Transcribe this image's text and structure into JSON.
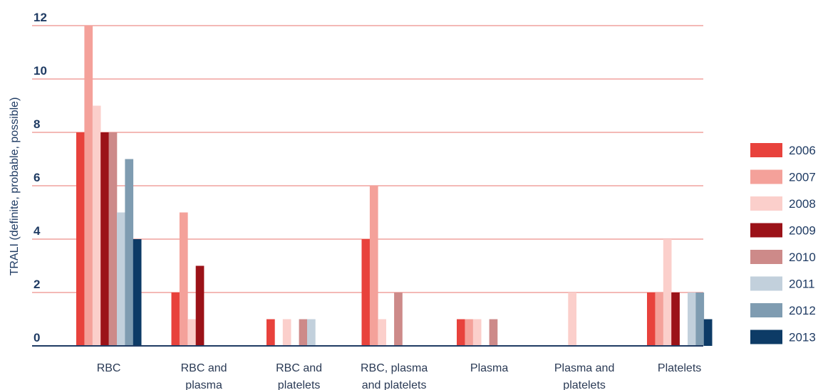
{
  "chart_data": {
    "type": "bar",
    "ylabel": "TRALI (definite, probable, possible)",
    "ylim": [
      0,
      12
    ],
    "yticks": [
      "0",
      "2",
      "4",
      "6",
      "8",
      "10",
      "12"
    ],
    "grid": true,
    "legend_position": "right",
    "categories": [
      [
        "RBC"
      ],
      [
        "RBC and",
        "plasma"
      ],
      [
        "RBC and",
        "platelets"
      ],
      [
        "RBC, plasma",
        "and platelets"
      ],
      [
        "Plasma"
      ],
      [
        "Plasma and",
        "platelets"
      ],
      [
        "Platelets"
      ]
    ],
    "series": [
      {
        "name": "2006",
        "color": "#e8423c",
        "values": [
          8,
          2,
          1,
          4,
          1,
          0,
          2
        ]
      },
      {
        "name": "2007",
        "color": "#f4a19a",
        "values": [
          12,
          5,
          0,
          6,
          1,
          0,
          2
        ]
      },
      {
        "name": "2008",
        "color": "#fbcfcb",
        "values": [
          9,
          1,
          1,
          1,
          1,
          2,
          4
        ]
      },
      {
        "name": "2009",
        "color": "#9b1218",
        "values": [
          8,
          3,
          0,
          0,
          0,
          0,
          2
        ]
      },
      {
        "name": "2010",
        "color": "#cd8a89",
        "values": [
          8,
          0,
          1,
          2,
          1,
          0,
          0
        ]
      },
      {
        "name": "2011",
        "color": "#c2d0dc",
        "values": [
          5,
          0,
          1,
          0,
          0,
          0,
          2
        ]
      },
      {
        "name": "2012",
        "color": "#7f9cb1",
        "values": [
          7,
          0,
          0,
          0,
          0,
          0,
          2
        ]
      },
      {
        "name": "2013",
        "color": "#0d3b66",
        "values": [
          4,
          0,
          0,
          0,
          0,
          0,
          1
        ]
      }
    ],
    "colors": {
      "grid": "#e8736d",
      "axis": "#1f3b63",
      "text": "#1f3b63"
    }
  }
}
